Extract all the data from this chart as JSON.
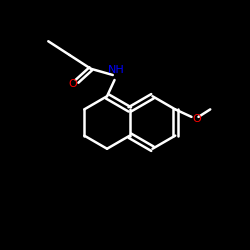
{
  "bg_color": "#000000",
  "bond_color": "#ffffff",
  "bond_width": 1.8,
  "text_color_N": "#0000ff",
  "text_color_O": "#ff0000",
  "figsize": [
    2.5,
    2.5
  ],
  "dpi": 100,
  "xlim": [
    0,
    10
  ],
  "ylim": [
    0,
    10
  ],
  "r_size": 1.05,
  "rcx": 6.1,
  "rcy": 5.1
}
